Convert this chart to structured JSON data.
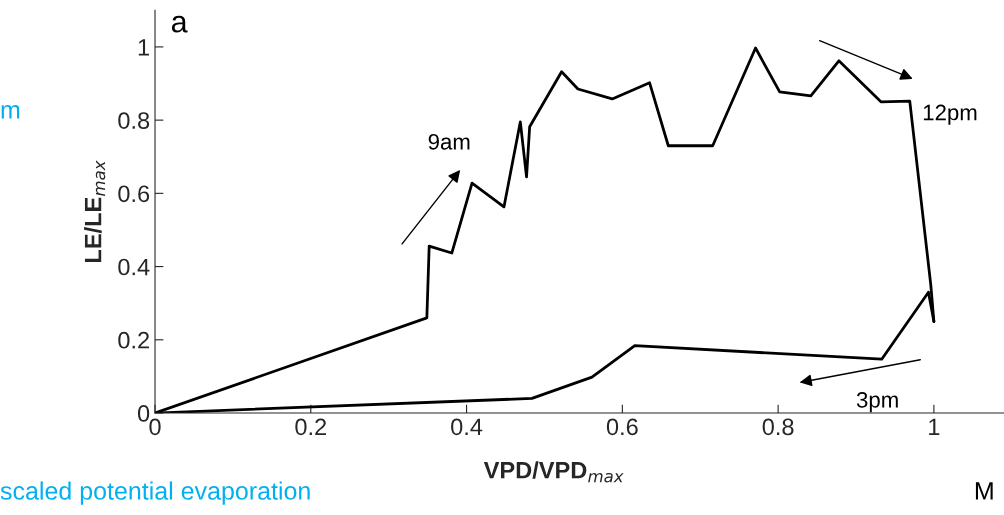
{
  "chart_data": {
    "type": "line",
    "xlabel": "VPD/VPD$_{max}$",
    "ylabel": "LE/LE$_{max}$",
    "series": [
      {
        "color": "#000000",
        "x": [
          0,
          0.349,
          0.352,
          0.381,
          0.407,
          0.448,
          0.469,
          0.477,
          0.481,
          0.522,
          0.543,
          0.587,
          0.635,
          0.659,
          0.716,
          0.771,
          0.802,
          0.842,
          0.878,
          0.932,
          0.969,
          0.996,
          1.0
        ],
        "values": [
          0,
          0.26,
          0.456,
          0.437,
          0.628,
          0.563,
          0.795,
          0.645,
          0.782,
          0.932,
          0.885,
          0.858,
          0.902,
          0.73,
          0.73,
          0.997,
          0.877,
          0.866,
          0.962,
          0.85,
          0.852,
          0.35,
          0.25
        ]
      },
      {
        "color": "#000000",
        "x": [
          1.0,
          0.993,
          0.933,
          0.616,
          0.561,
          0.484,
          0
        ],
        "values": [
          0.25,
          0.33,
          0.147,
          0.184,
          0.098,
          0.04,
          0
        ]
      }
    ],
    "xlim": [
      0,
      1.09
    ],
    "ylim": [
      0,
      1.1
    ],
    "xticks": [
      0,
      0.2,
      0.4,
      0.6,
      0.8,
      1
    ],
    "yticks": [
      0,
      0.2,
      0.4,
      0.6,
      0.8,
      1
    ],
    "grid": false,
    "legend": false,
    "marker": "none",
    "line_style": "solid",
    "annotations": [
      "a",
      "9am",
      "12pm",
      "3pm",
      "m",
      "scaled potential evaporation",
      "M"
    ]
  }
}
